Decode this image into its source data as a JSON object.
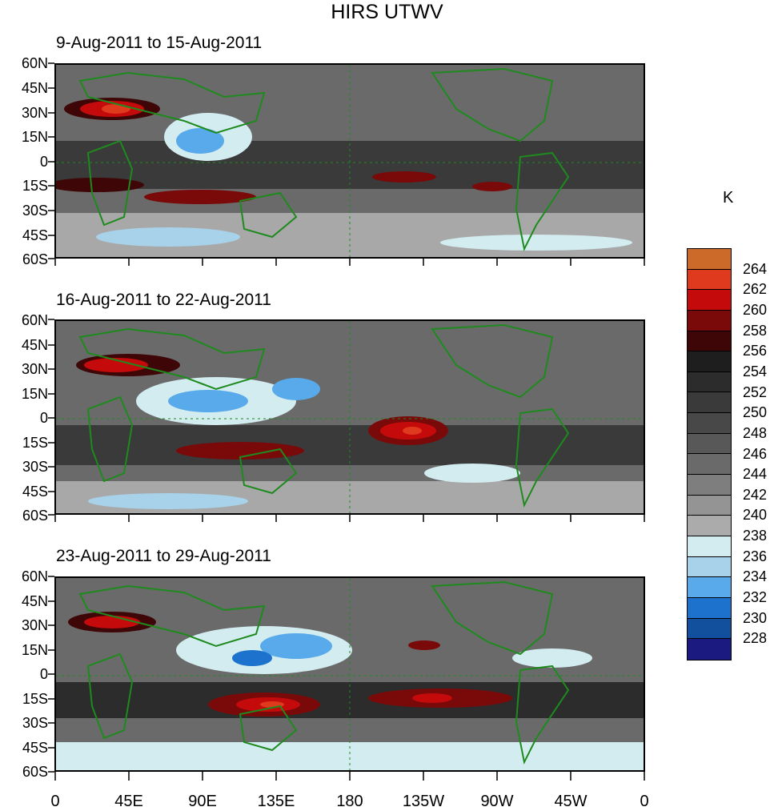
{
  "title": "HIRS UTWV",
  "panels": [
    {
      "label": "9-Aug-2011 to 15-Aug-2011"
    },
    {
      "label": "16-Aug-2011 to 22-Aug-2011"
    },
    {
      "label": "23-Aug-2011 to 29-Aug-2011"
    }
  ],
  "lat_labels": [
    "60N",
    "45N",
    "30N",
    "15N",
    "0",
    "15S",
    "30S",
    "45S",
    "60S"
  ],
  "lon_labels": [
    "0",
    "45E",
    "90E",
    "135E",
    "180",
    "135W",
    "90W",
    "45W",
    "0"
  ],
  "colorbar": {
    "unit": "K",
    "labels": [
      "264",
      "262",
      "260",
      "258",
      "256",
      "254",
      "252",
      "250",
      "248",
      "246",
      "244",
      "242",
      "240",
      "238",
      "236",
      "234",
      "232",
      "230",
      "228"
    ],
    "colors": [
      "#cc6a2a",
      "#e03a1e",
      "#c40a0a",
      "#7a0a0a",
      "#3e0606",
      "#1e1e1e",
      "#2c2c2c",
      "#3a3a3a",
      "#484848",
      "#585858",
      "#6a6a6a",
      "#7e7e7e",
      "#949494",
      "#ababab",
      "#d2ecf0",
      "#a8d2ea",
      "#58aaea",
      "#1c72cc",
      "#12509e",
      "#1a1a80"
    ]
  },
  "coastline_color": "#1e8a1e"
}
